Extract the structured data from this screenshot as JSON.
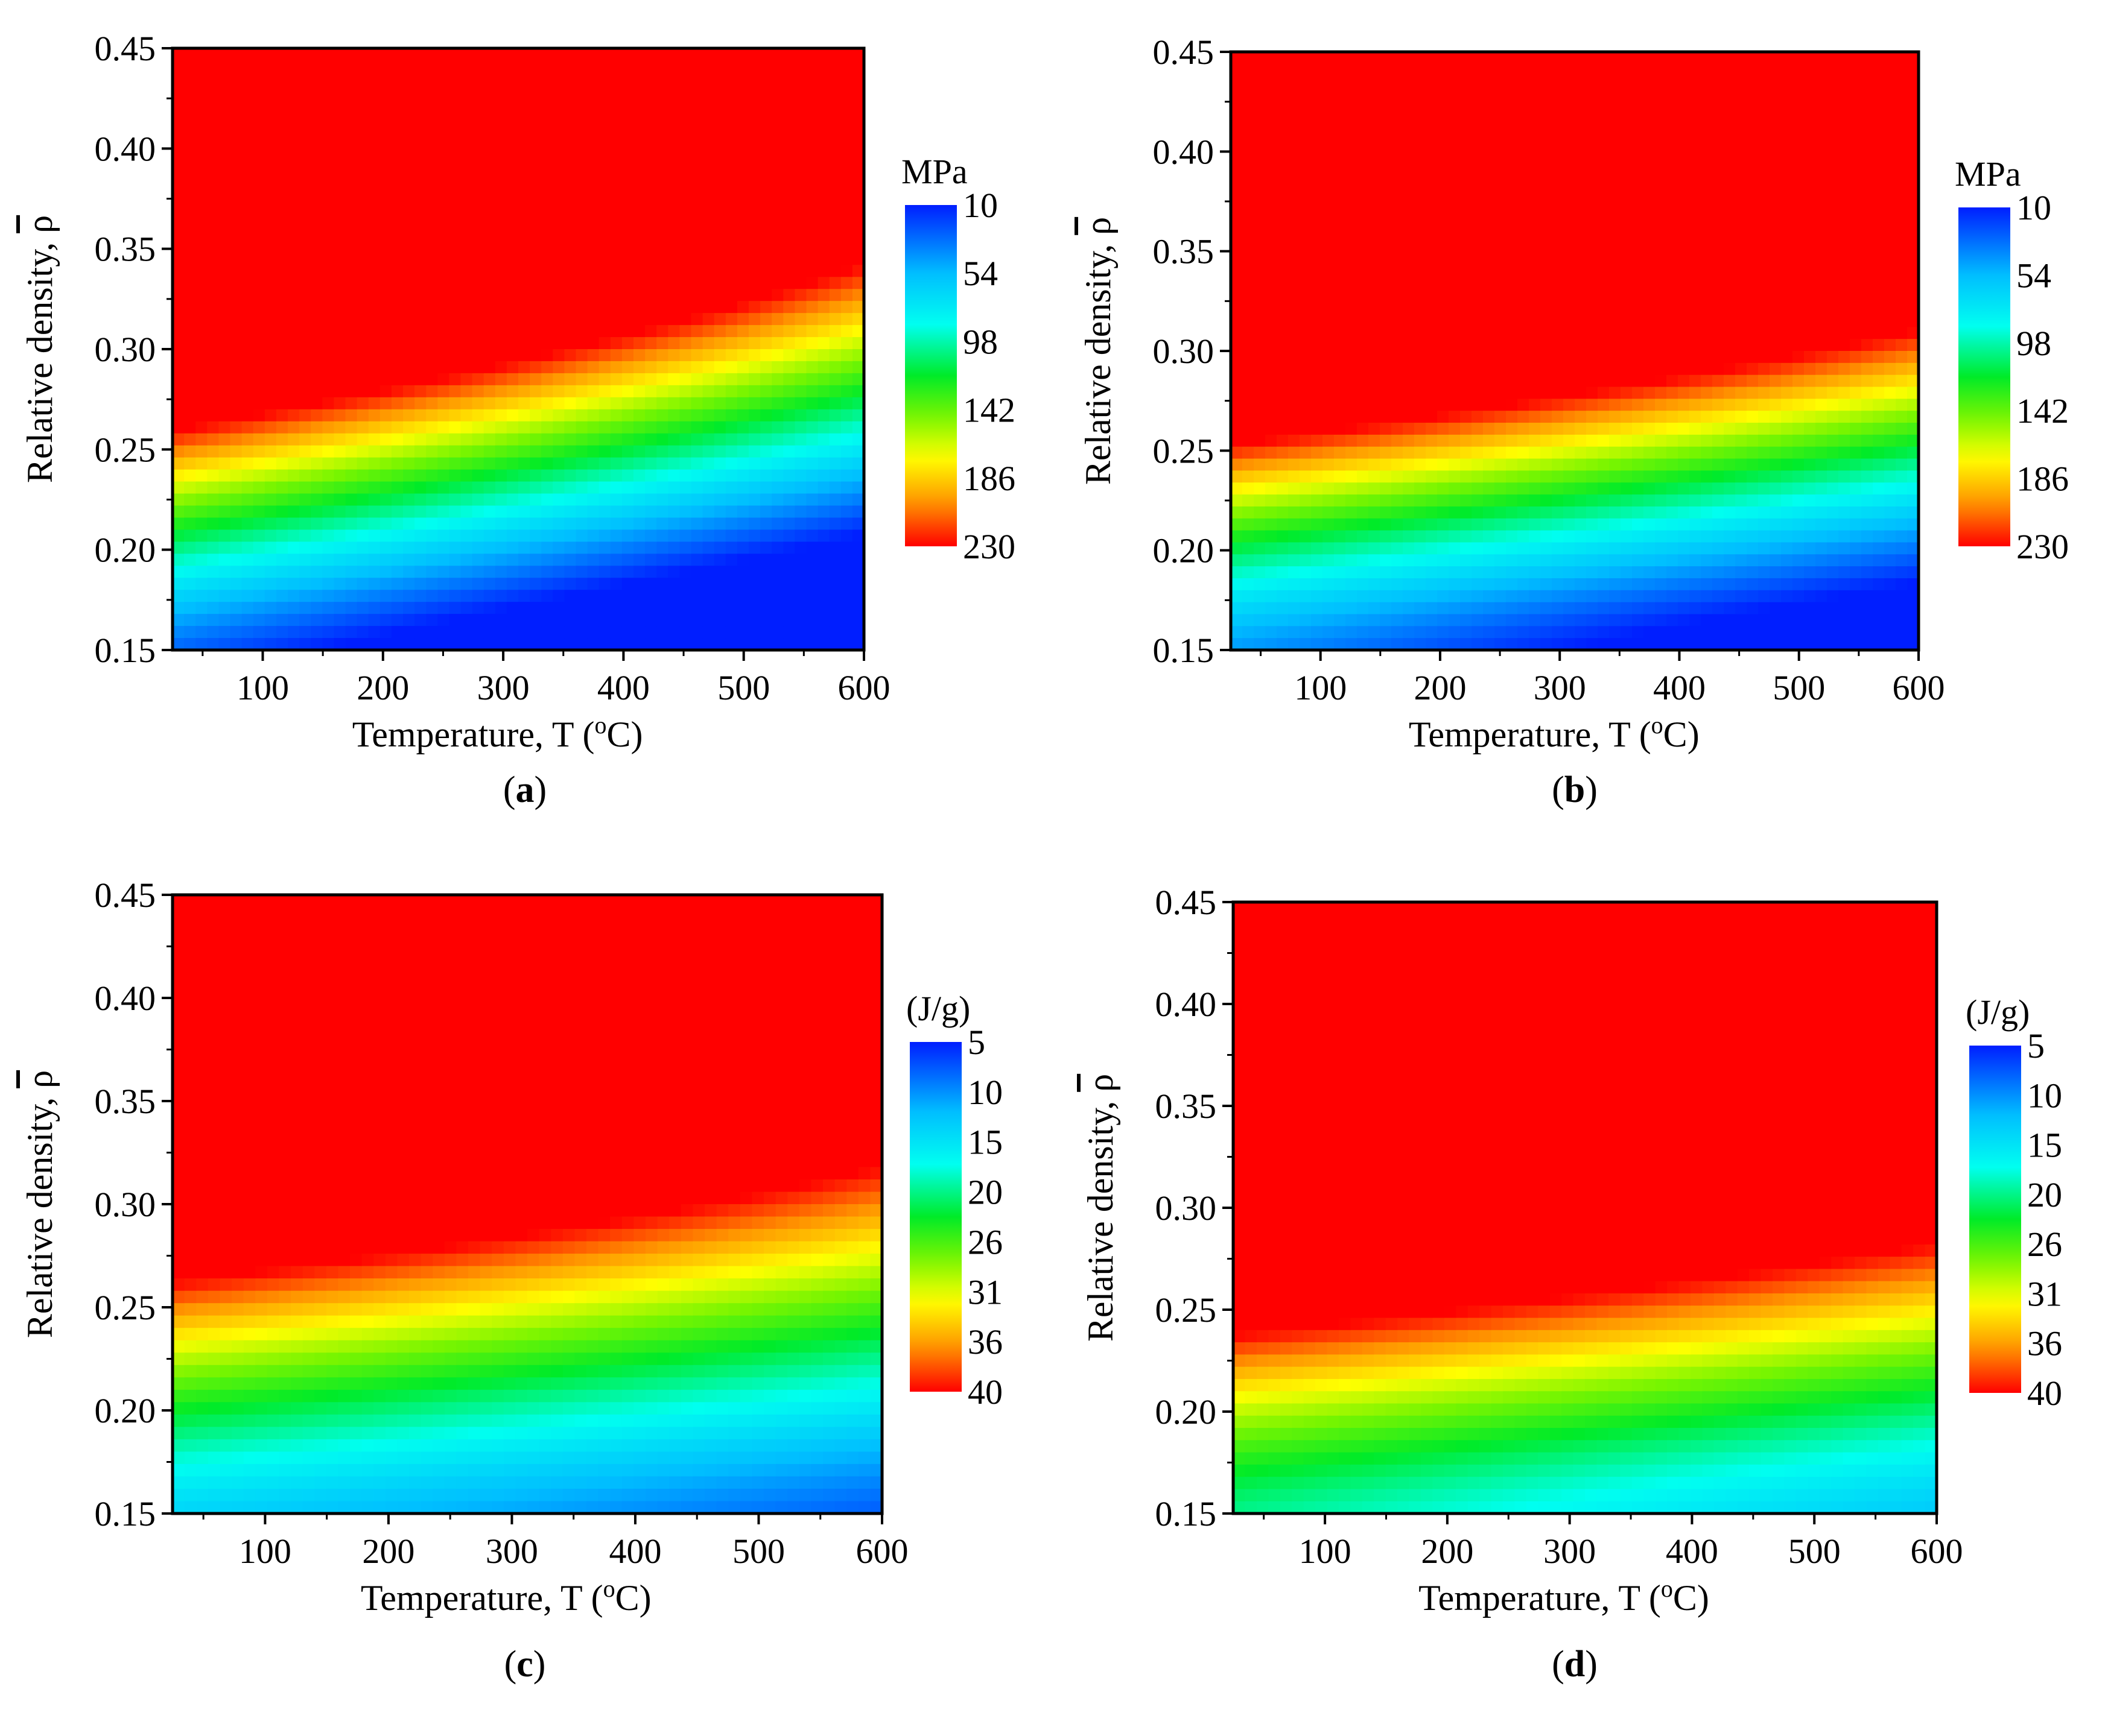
{
  "chart_data": [
    {
      "id": "a",
      "type": "heatmap",
      "caption": "a",
      "xlabel": "Temperature, T (",
      "xlabel_sup": "o",
      "xlabel_tail": "C)",
      "ylabel": "Relative density,  ",
      "ylabel_symbol": "ρ",
      "xlim": [
        25,
        600
      ],
      "ylim": [
        0.15,
        0.45
      ],
      "xticks": [
        100,
        200,
        300,
        400,
        500,
        600
      ],
      "yticks": [
        "0.15",
        "0.20",
        "0.25",
        "0.30",
        "0.35",
        "0.40",
        "0.45"
      ],
      "colorbar": {
        "title": "MPa",
        "labels": [
          "10",
          "54",
          "98",
          "142",
          "186",
          "230"
        ],
        "min": 10,
        "max": 230
      },
      "field": {
        "base": 30,
        "k_rho": 560,
        "k_T": 0.26,
        "k_rho_T": 0.0,
        "power": 1.15
      },
      "value_range": [
        10,
        230
      ]
    },
    {
      "id": "b",
      "type": "heatmap",
      "caption": "b",
      "xlabel": "Temperature, T (",
      "xlabel_sup": "o",
      "xlabel_tail": "C)",
      "ylabel": "Relative density,  ",
      "ylabel_symbol": "ρ",
      "xlim": [
        25,
        600
      ],
      "ylim": [
        0.15,
        0.45
      ],
      "xticks": [
        100,
        200,
        300,
        400,
        500,
        600
      ],
      "yticks": [
        "0.15",
        "0.20",
        "0.25",
        "0.30",
        "0.35",
        "0.40",
        "0.45"
      ],
      "colorbar": {
        "title": "MPa",
        "labels": [
          "10",
          "54",
          "98",
          "142",
          "186",
          "230"
        ],
        "min": 10,
        "max": 230
      },
      "field": {
        "base": 45,
        "k_rho": 620,
        "k_T": 0.2,
        "k_rho_T": 0.0,
        "power": 1.25
      },
      "value_range": [
        10,
        230
      ]
    },
    {
      "id": "c",
      "type": "heatmap",
      "caption": "c",
      "xlabel": "Temperature, T (",
      "xlabel_sup": "o",
      "xlabel_tail": "C)",
      "ylabel": "Relative density,  ",
      "ylabel_symbol": "ρ",
      "xlim": [
        25,
        600
      ],
      "ylim": [
        0.15,
        0.45
      ],
      "xticks": [
        100,
        200,
        300,
        400,
        500,
        600
      ],
      "yticks": [
        "0.15",
        "0.20",
        "0.25",
        "0.30",
        "0.35",
        "0.40",
        "0.45"
      ],
      "colorbar": {
        "title": "(J/g)",
        "labels": [
          "5",
          "10",
          "15",
          "20",
          "26",
          "31",
          "36",
          "40"
        ],
        "min": 5,
        "max": 40
      },
      "field": {
        "base": 14,
        "k_rho": 70,
        "k_T": 0.018,
        "k_rho_T": 0.0,
        "power": 1.2
      },
      "value_range": [
        5,
        40
      ]
    },
    {
      "id": "d",
      "type": "heatmap",
      "caption": "d",
      "xlabel": "Temperature, T (",
      "xlabel_sup": "o",
      "xlabel_tail": "C)",
      "ylabel": "Relative density,  ",
      "ylabel_symbol": "ρ",
      "xlim": [
        25,
        600
      ],
      "ylim": [
        0.15,
        0.45
      ],
      "xticks": [
        100,
        200,
        300,
        400,
        500,
        600
      ],
      "yticks": [
        "0.15",
        "0.20",
        "0.25",
        "0.30",
        "0.35",
        "0.40",
        "0.45"
      ],
      "colorbar": {
        "title": "(J/g)",
        "labels": [
          "5",
          "10",
          "15",
          "20",
          "26",
          "31",
          "36",
          "40"
        ],
        "min": 5,
        "max": 40
      },
      "field": {
        "base": 20,
        "k_rho": 85,
        "k_T": 0.02,
        "k_rho_T": 0.0,
        "power": 1.3
      },
      "value_range": [
        5,
        40
      ]
    }
  ]
}
